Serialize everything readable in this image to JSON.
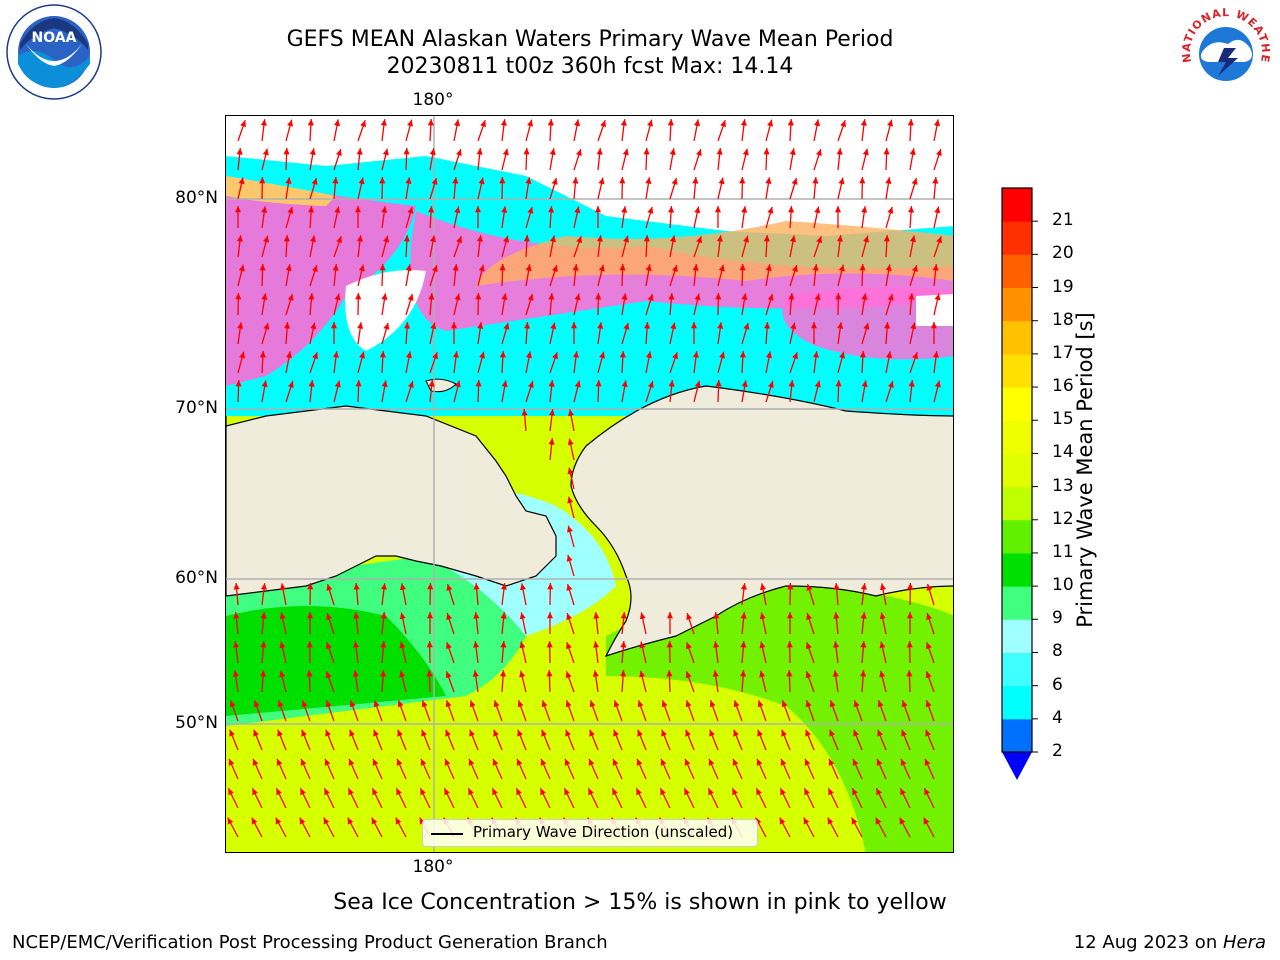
{
  "title": {
    "line1": "GEFS MEAN Alaskan Waters Primary Wave Mean Period",
    "line2": "20230811 t00z 360h fcst   Max: 14.14"
  },
  "logos": {
    "left": "NOAA",
    "right": "NATIONAL WEATHER SERVICE"
  },
  "map": {
    "top_lon_label": "180°",
    "bottom_lon_label": "180°",
    "lat_labels": [
      "80°N",
      "70°N",
      "60°N",
      "50°N"
    ],
    "legend_label": "Primary Wave Direction (unscaled)",
    "land_color": "#efecdc",
    "ice_note": "Sea Ice Concentration > 15% is shown in pink to yellow"
  },
  "colorbar": {
    "title": "Primary Wave Mean Period [s]",
    "ticks": [
      "2",
      "4",
      "6",
      "8",
      "9",
      "10",
      "11",
      "12",
      "13",
      "14",
      "15",
      "16",
      "17",
      "18",
      "19",
      "20",
      "21"
    ],
    "colors": [
      "#0070ff",
      "#00ffff",
      "#40ffff",
      "#a0ffff",
      "#40ff80",
      "#00e000",
      "#60f000",
      "#c0ff00",
      "#e0ff00",
      "#f0ff00",
      "#ffff00",
      "#ffe000",
      "#ffc000",
      "#ff9000",
      "#ff6000",
      "#ff3000",
      "#ff0000"
    ],
    "under_color": "#0000ff"
  },
  "footer": {
    "left": "NCEP/EMC/Verification Post Processing Product Generation Branch",
    "right_date": "12 Aug 2023 on ",
    "right_host": "Hera"
  }
}
